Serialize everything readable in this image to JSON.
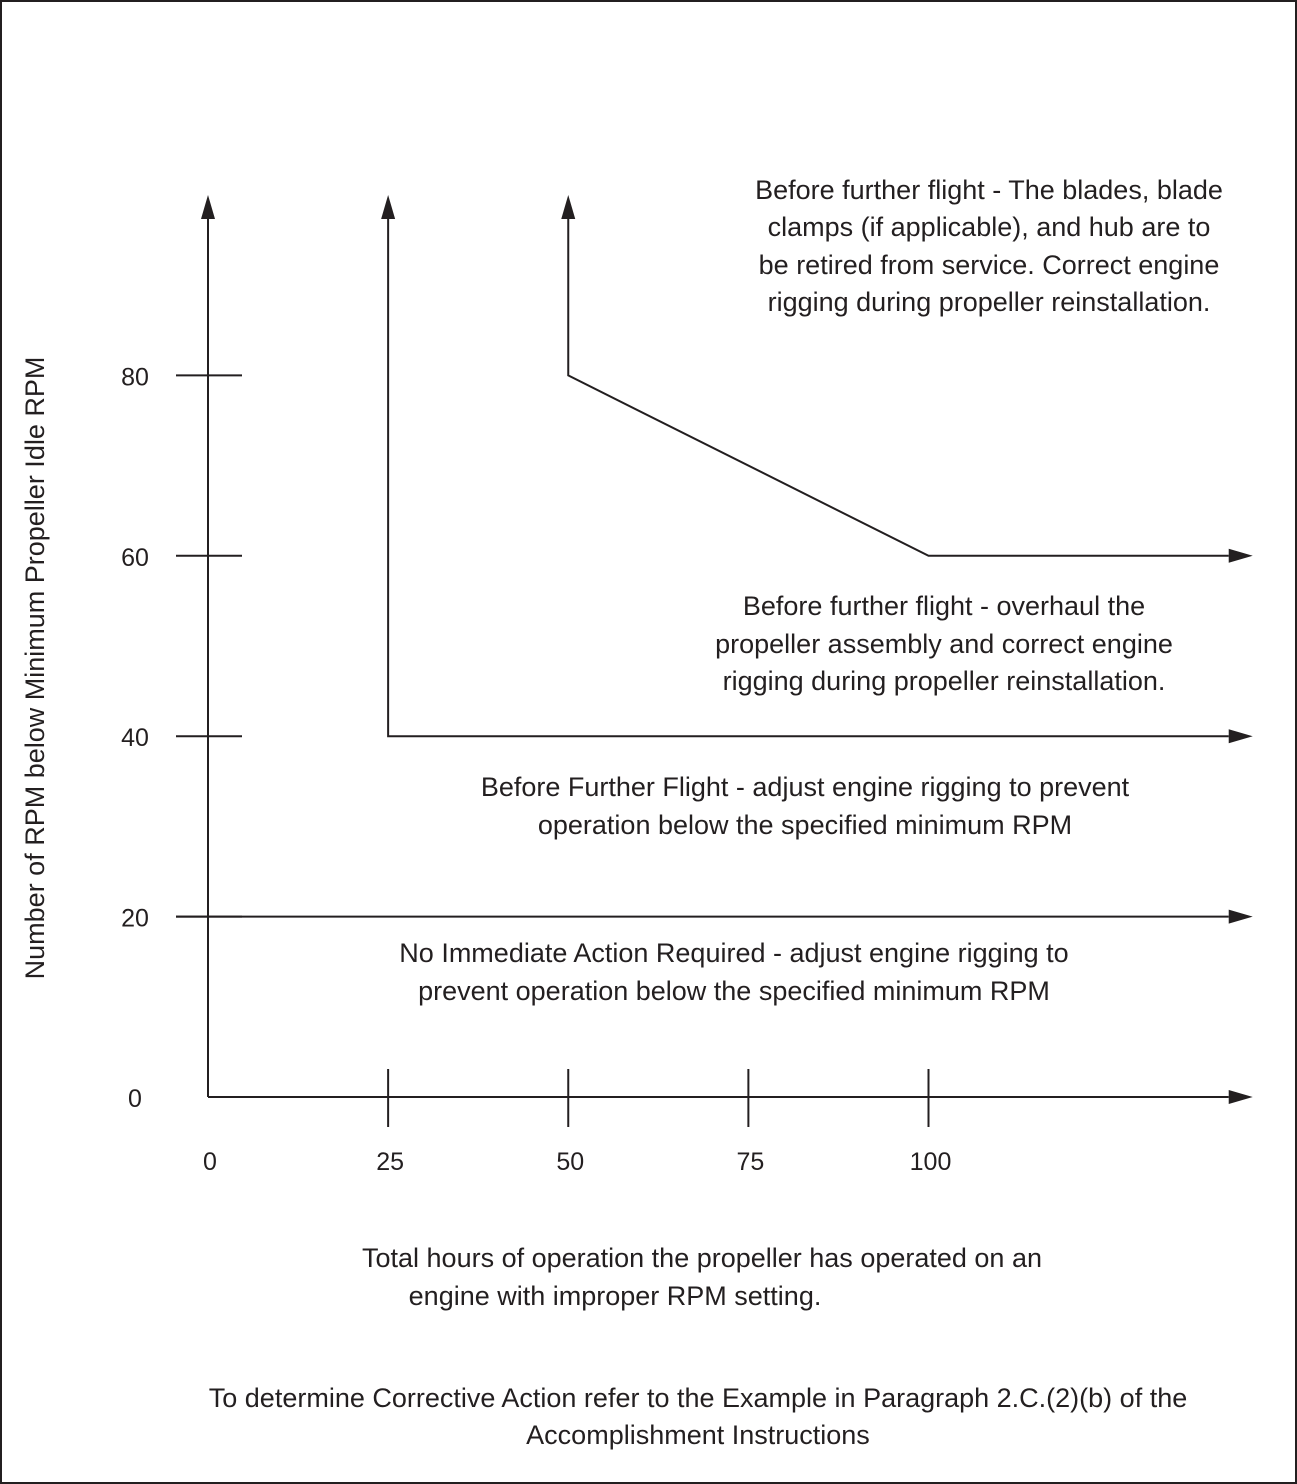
{
  "chart_data": {
    "type": "line",
    "ylabel": "Number of RPM below Minimum Propeller Idle RPM",
    "xlabel": [
      "Total hours of operation the propeller has operated on an",
      "engine with improper RPM setting."
    ],
    "x_ticks": [
      "0",
      "25",
      "50",
      "75",
      "100"
    ],
    "y_ticks": [
      "0",
      "20",
      "40",
      "60",
      "80"
    ],
    "xlim": [
      0,
      145
    ],
    "ylim": [
      0,
      100
    ],
    "grid": false,
    "series": [
      {
        "points": [
          [
            0,
            20
          ],
          [
            145,
            20
          ]
        ]
      },
      {
        "points": [
          [
            25,
            100
          ],
          [
            25,
            40
          ],
          [
            145,
            40
          ]
        ]
      },
      {
        "points": [
          [
            50,
            100
          ],
          [
            50,
            80
          ],
          [
            100,
            60
          ],
          [
            145,
            60
          ]
        ]
      }
    ],
    "annotations": [
      {
        "region": "0-20",
        "lines": [
          "No Immediate Action Required - adjust engine rigging to",
          "prevent operation below the specified minimum RPM"
        ]
      },
      {
        "region": "20-40",
        "lines": [
          "Before Further Flight - adjust engine rigging to prevent",
          "operation below the specified minimum RPM"
        ]
      },
      {
        "region": "40-60",
        "lines": [
          "Before further flight - overhaul the",
          "propeller assembly and correct engine",
          "rigging during propeller reinstallation."
        ]
      },
      {
        "region": "above",
        "lines": [
          "Before further flight - The blades, blade",
          "clamps (if applicable), and hub are to",
          "be retired from service.  Correct engine",
          "rigging during propeller reinstallation."
        ]
      }
    ]
  },
  "footer": {
    "lines": [
      "To determine Corrective Action refer to the Example in Paragraph 2.C.(2)(b) of the",
      "Accomplishment Instructions"
    ]
  }
}
